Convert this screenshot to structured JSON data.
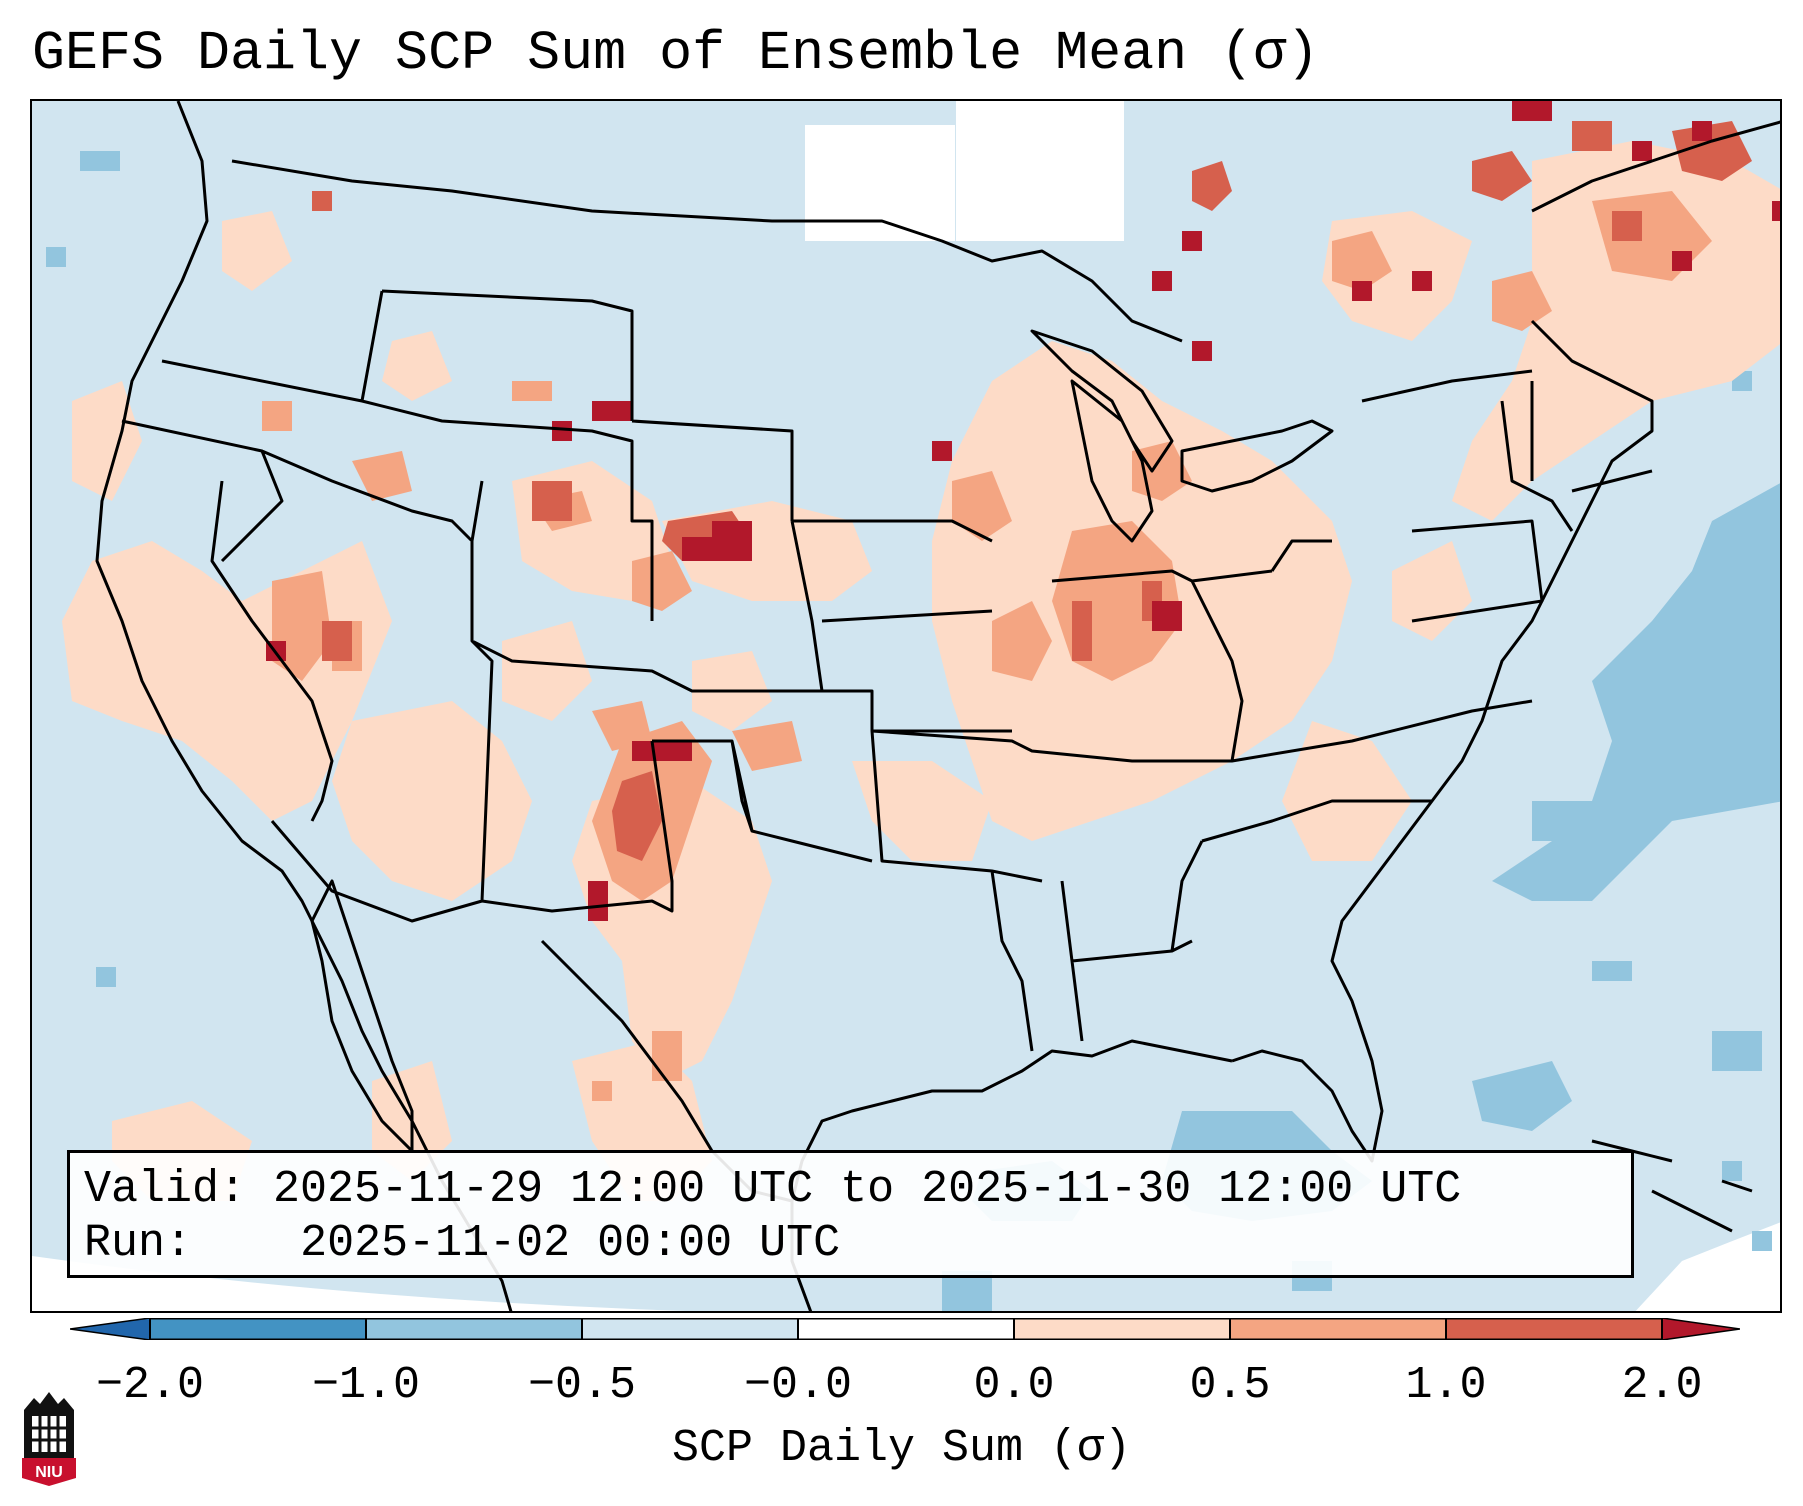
{
  "title": "GEFS Daily SCP Sum of Ensemble Mean (σ)",
  "info": {
    "valid_label": "Valid:",
    "valid_value": "2025-11-29 12:00 UTC to 2025-11-30 12:00 UTC",
    "run_label": "Run:",
    "run_value": "2025-11-02 00:00 UTC"
  },
  "colorbar": {
    "label": "SCP Daily Sum (σ)",
    "ticks": [
      "−2.0",
      "−1.0",
      "−0.5",
      "−0.0",
      "0.0",
      "0.5",
      "1.0",
      "2.0"
    ],
    "colors": [
      "#4393c3",
      "#92c5de",
      "#d1e5f0",
      "#ffffff",
      "#fddbc7",
      "#f4a582",
      "#d6604d",
      "#b2182b"
    ],
    "under_color": "#2166ac",
    "over_color": "#b2182b"
  },
  "logo": {
    "text": "NIU",
    "color": "#c8102e"
  },
  "map": {
    "region": "Continental United States",
    "background_color": "#d1e5f0"
  }
}
